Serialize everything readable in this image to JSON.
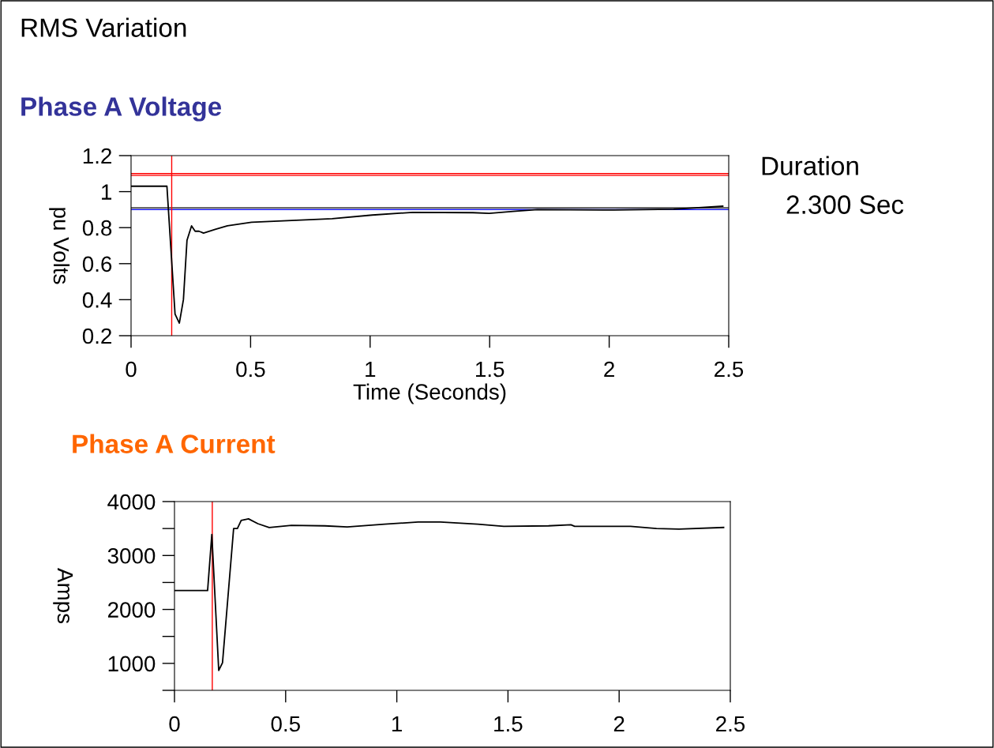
{
  "chart_data": [
    {
      "type": "line",
      "title": "RMS Variation",
      "subtitle": "Phase A Voltage",
      "xlabel": "Time (Seconds)",
      "ylabel": "pu Volts",
      "annotations": [
        "Duration",
        "2.300 Sec"
      ],
      "x": [
        0,
        0.15,
        0.184,
        0.202,
        0.219,
        0.234,
        0.253,
        0.268,
        0.284,
        0.303,
        0.352,
        0.403,
        0.504,
        0.672,
        0.841,
        1.009,
        1.178,
        1.43,
        1.498,
        1.598,
        1.7,
        2.02,
        2.27,
        2.475
      ],
      "series": [
        {
          "color": "#000000",
          "values": [
            1.03,
            1.03,
            0.32,
            0.27,
            0.4,
            0.73,
            0.81,
            0.78,
            0.78,
            0.77,
            0.79,
            0.81,
            0.83,
            0.84,
            0.85,
            0.87,
            0.885,
            0.883,
            0.879,
            0.89,
            0.9,
            0.898,
            0.902,
            0.919
          ]
        }
      ],
      "xlim": [
        0,
        2.5
      ],
      "xticks": [
        0,
        0.5,
        1,
        1.5,
        2,
        2.5
      ],
      "ylim": [
        0.2,
        1.2
      ],
      "yticks": [
        0.2,
        0.4,
        0.6,
        0.8,
        1,
        1.2
      ],
      "ref_lines": [
        {
          "axis": "y",
          "value": 1.1,
          "color": "#ff0000"
        },
        {
          "axis": "y",
          "value": 1.09,
          "color": "#ff0000"
        },
        {
          "axis": "y",
          "value": 0.91,
          "color": "#000000"
        },
        {
          "axis": "y",
          "value": 0.9,
          "color": "#0000ff"
        },
        {
          "axis": "x",
          "value": 0.17,
          "color": "#ff0000"
        }
      ],
      "grid": false,
      "legend": false,
      "marker": "none",
      "line_style": "solid"
    },
    {
      "type": "line",
      "title": "Phase A Current",
      "ylabel": "Amps",
      "x": [
        0,
        0.149,
        0.168,
        0.199,
        0.216,
        0.266,
        0.283,
        0.3,
        0.333,
        0.375,
        0.426,
        0.526,
        0.677,
        0.777,
        0.945,
        1.096,
        1.196,
        1.364,
        1.481,
        1.682,
        1.783,
        1.8,
        2.051,
        2.168,
        2.269,
        2.47
      ],
      "series": [
        {
          "color": "#000000",
          "values": [
            2350,
            2350,
            3390,
            870,
            1010,
            3500,
            3500,
            3650,
            3680,
            3590,
            3520,
            3560,
            3550,
            3530,
            3580,
            3620,
            3620,
            3580,
            3540,
            3550,
            3570,
            3540,
            3540,
            3500,
            3490,
            3520
          ]
        }
      ],
      "xlim": [
        0,
        2.5
      ],
      "xticks": [
        0,
        0.5,
        1,
        1.5,
        2,
        2.5
      ],
      "ylim": [
        500,
        4000
      ],
      "yticks": [
        {
          "value": 500,
          "label": null
        },
        1000,
        {
          "value": 1500,
          "label": null
        },
        2000,
        {
          "value": 2500,
          "label": null
        },
        3000,
        {
          "value": 3500,
          "label": null
        },
        4000
      ],
      "ref_lines": [
        {
          "axis": "x",
          "value": 0.17,
          "color": "#ff0000"
        }
      ],
      "grid": false,
      "legend": false,
      "marker": "none",
      "line_style": "solid"
    }
  ]
}
